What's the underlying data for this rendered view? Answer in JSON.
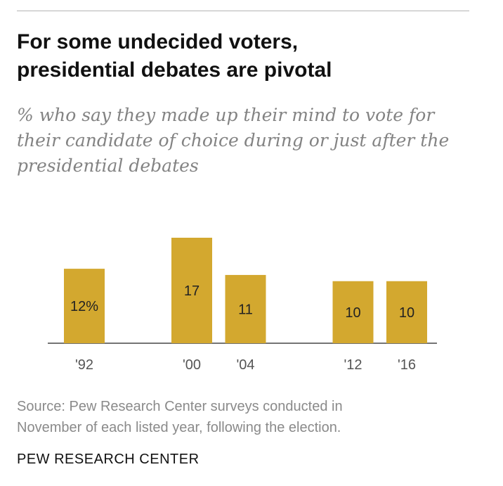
{
  "header": {
    "title_line1": "For some undecided voters,",
    "title_line2": "presidential debates are pivotal",
    "subtitle_line1": "% who say they made up their mind to vote for",
    "subtitle_line2": "their candidate of choice during or just after the",
    "subtitle_line3": "presidential debates"
  },
  "chart_data": {
    "type": "bar",
    "categories": [
      "'92",
      "'00",
      "'04",
      "'12",
      "'16"
    ],
    "values": [
      12,
      17,
      11,
      10,
      10
    ],
    "value_labels": [
      "12%",
      "17",
      "11",
      "10",
      "10"
    ],
    "ylim": [
      0,
      17
    ],
    "grid": false,
    "legend": "none",
    "bar_color": "#d3a82f"
  },
  "footer": {
    "source_line1": "Source: Pew Research Center surveys conducted in",
    "source_line2": "November of each listed year, following the election.",
    "brand": "PEW RESEARCH CENTER"
  }
}
